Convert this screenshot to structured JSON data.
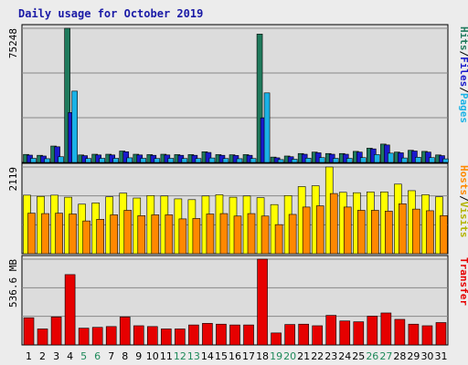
{
  "title": "Daily usage for October 2019",
  "colors": {
    "hits": "#1f7a5c",
    "files": "#1a1acc",
    "pages": "#1ab2e6",
    "visits": "#ffff00",
    "hosts": "#ff8800",
    "transfer": "#e60000",
    "weekend_day": "#1f8a5a",
    "weekday_day": "#000000",
    "background": "#ececec",
    "plot": "#dcdcdc",
    "grid": "#888888"
  },
  "chart_data": [
    {
      "type": "bar",
      "name": "hits-files-pages",
      "ylabel_segments": [
        {
          "text": "Hits",
          "color": "#1f7a5c"
        },
        {
          "text": "/",
          "color": "#000000"
        },
        {
          "text": "Files",
          "color": "#1a1acc"
        },
        {
          "text": "/",
          "color": "#000000"
        },
        {
          "text": "Pages",
          "color": "#1ab2e6"
        }
      ],
      "max_label": "75248",
      "ylim": [
        0,
        75248
      ],
      "categories": [
        "1",
        "2",
        "3",
        "4",
        "5",
        "6",
        "7",
        "8",
        "9",
        "10",
        "11",
        "12",
        "13",
        "14",
        "15",
        "16",
        "17",
        "18",
        "19",
        "20",
        "21",
        "22",
        "23",
        "24",
        "25",
        "26",
        "27",
        "28",
        "29",
        "30",
        "31"
      ],
      "series": [
        {
          "name": "Hits",
          "values": [
            4500,
            4000,
            9200,
            75248,
            4200,
            4600,
            4600,
            6400,
            4600,
            4400,
            4600,
            4400,
            4400,
            6000,
            4400,
            4300,
            4400,
            72000,
            3000,
            3600,
            5000,
            5800,
            5000,
            5000,
            6200,
            8000,
            10300,
            5800,
            6800,
            6200,
            4200
          ]
        },
        {
          "name": "Files",
          "values": [
            4100,
            3600,
            8800,
            28000,
            3800,
            4200,
            4200,
            6000,
            4200,
            4000,
            4200,
            4000,
            4000,
            5600,
            4000,
            3900,
            4000,
            25000,
            2600,
            3200,
            4600,
            5400,
            4600,
            4600,
            5800,
            7600,
            9800,
            5400,
            6400,
            5800,
            3800
          ]
        },
        {
          "name": "Pages",
          "values": [
            2300,
            2100,
            3200,
            40000,
            2200,
            2300,
            2300,
            2600,
            2300,
            2200,
            2300,
            2200,
            2200,
            2500,
            2200,
            2100,
            2200,
            39000,
            1600,
            1800,
            2400,
            2700,
            2300,
            2300,
            2700,
            4400,
            5200,
            2500,
            2900,
            2700,
            2000
          ]
        }
      ]
    },
    {
      "type": "bar",
      "name": "visits-hosts",
      "ylabel_segments": [
        {
          "text": "Hosts",
          "color": "#ff8800"
        },
        {
          "text": "/",
          "color": "#000000"
        },
        {
          "text": "Visits",
          "color": "#b3b300"
        }
      ],
      "max_label": "2119",
      "ylim": [
        0,
        2119
      ],
      "categories": [
        "1",
        "2",
        "3",
        "4",
        "5",
        "6",
        "7",
        "8",
        "9",
        "10",
        "11",
        "12",
        "13",
        "14",
        "15",
        "16",
        "17",
        "18",
        "19",
        "20",
        "21",
        "22",
        "23",
        "24",
        "25",
        "26",
        "27",
        "28",
        "29",
        "30",
        "31"
      ],
      "series": [
        {
          "name": "Visits",
          "values": [
            1430,
            1400,
            1430,
            1380,
            1210,
            1240,
            1390,
            1480,
            1360,
            1420,
            1410,
            1340,
            1320,
            1410,
            1440,
            1380,
            1410,
            1370,
            1200,
            1420,
            1640,
            1660,
            2119,
            1500,
            1490,
            1510,
            1510,
            1700,
            1540,
            1440,
            1390
          ]
        },
        {
          "name": "Hosts",
          "values": [
            990,
            980,
            990,
            970,
            800,
            840,
            950,
            1060,
            930,
            950,
            950,
            850,
            860,
            970,
            980,
            920,
            980,
            920,
            710,
            960,
            1140,
            1170,
            1470,
            1140,
            1060,
            1060,
            1040,
            1220,
            1090,
            1050,
            930
          ]
        }
      ]
    },
    {
      "type": "bar",
      "name": "transfer",
      "ylabel_segments": [
        {
          "text": "Transfer",
          "color": "#e60000"
        }
      ],
      "max_label": "536.6 MB",
      "ylim": [
        0,
        536.6
      ],
      "categories": [
        "1",
        "2",
        "3",
        "4",
        "5",
        "6",
        "7",
        "8",
        "9",
        "10",
        "11",
        "12",
        "13",
        "14",
        "15",
        "16",
        "17",
        "18",
        "19",
        "20",
        "21",
        "22",
        "23",
        "24",
        "25",
        "26",
        "27",
        "28",
        "29",
        "30",
        "31"
      ],
      "series": [
        {
          "name": "Transfer",
          "values": [
            170,
            100,
            175,
            440,
            105,
            110,
            115,
            175,
            120,
            115,
            100,
            100,
            125,
            135,
            130,
            125,
            125,
            536.6,
            75,
            128,
            130,
            120,
            185,
            150,
            145,
            180,
            200,
            160,
            130,
            120,
            140
          ]
        }
      ]
    }
  ],
  "x_labels": [
    {
      "text": "1",
      "weekend": false
    },
    {
      "text": "2",
      "weekend": false
    },
    {
      "text": "3",
      "weekend": false
    },
    {
      "text": "4",
      "weekend": false
    },
    {
      "text": "5",
      "weekend": true
    },
    {
      "text": "6",
      "weekend": true
    },
    {
      "text": "7",
      "weekend": false
    },
    {
      "text": "8",
      "weekend": false
    },
    {
      "text": "9",
      "weekend": false
    },
    {
      "text": "10",
      "weekend": false
    },
    {
      "text": "11",
      "weekend": false
    },
    {
      "text": "12",
      "weekend": true
    },
    {
      "text": "13",
      "weekend": true
    },
    {
      "text": "14",
      "weekend": false
    },
    {
      "text": "15",
      "weekend": false
    },
    {
      "text": "16",
      "weekend": false
    },
    {
      "text": "17",
      "weekend": false
    },
    {
      "text": "18",
      "weekend": false
    },
    {
      "text": "19",
      "weekend": true
    },
    {
      "text": "20",
      "weekend": true
    },
    {
      "text": "21",
      "weekend": false
    },
    {
      "text": "22",
      "weekend": false
    },
    {
      "text": "23",
      "weekend": false
    },
    {
      "text": "24",
      "weekend": false
    },
    {
      "text": "25",
      "weekend": false
    },
    {
      "text": "26",
      "weekend": true
    },
    {
      "text": "27",
      "weekend": true
    },
    {
      "text": "28",
      "weekend": false
    },
    {
      "text": "29",
      "weekend": false
    },
    {
      "text": "30",
      "weekend": false
    },
    {
      "text": "31",
      "weekend": false
    }
  ]
}
